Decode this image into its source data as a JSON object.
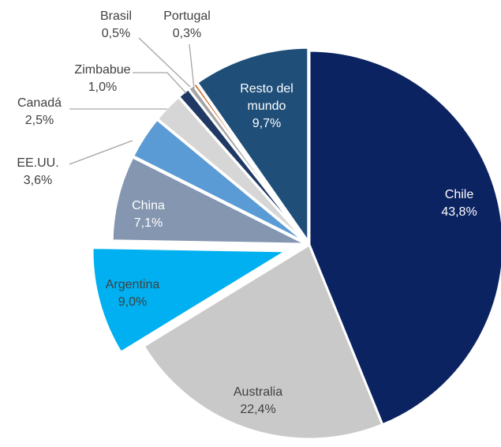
{
  "chart_data": {
    "type": "pie",
    "categories": [
      "Chile",
      "Australia",
      "Argentina",
      "China",
      "EE.UU.",
      "Canadá",
      "Zimbabue",
      "Brasil",
      "Portugal",
      "Resto del mundo"
    ],
    "values": [
      43.8,
      22.4,
      9.0,
      7.1,
      3.6,
      2.5,
      1.0,
      0.5,
      0.3,
      9.7
    ],
    "value_labels": [
      "43,8%",
      "22,4%",
      "9,0%",
      "7,1%",
      "3,6%",
      "2,5%",
      "1,0%",
      "0,5%",
      "0,3%",
      "9,7%"
    ],
    "colors": [
      "#0b2361",
      "#c9c9c9",
      "#00b0f0",
      "#8496b0",
      "#5b9bd5",
      "#d6d6d6",
      "#1f3864",
      "#a5a5a5",
      "#c55a11",
      "#1f4e79"
    ]
  }
}
